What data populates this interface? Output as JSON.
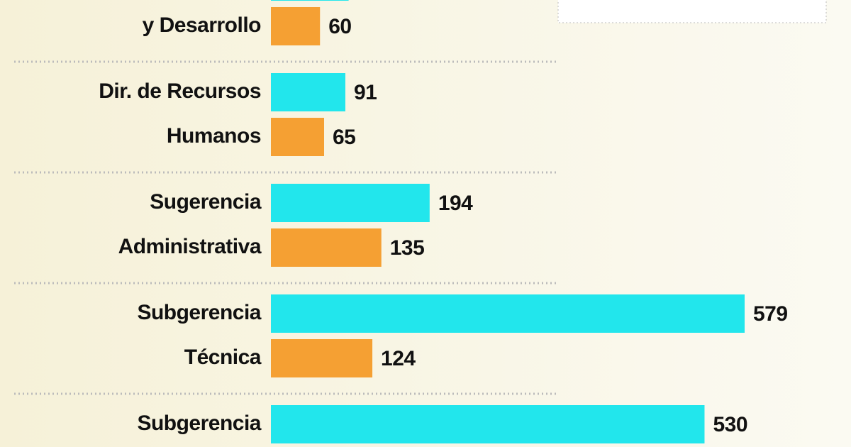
{
  "chart_data": {
    "type": "bar",
    "orientation": "horizontal",
    "categories": [
      [
        "y Desarrollo"
      ],
      [
        "Dir. de Recursos",
        "Humanos"
      ],
      [
        "Sugerencia",
        "Administrativa"
      ],
      [
        "Subgerencia",
        "Técnica"
      ],
      [
        "Subgerencia"
      ]
    ],
    "series": [
      {
        "color": "#22e6ec",
        "values": [
          95,
          91,
          194,
          579,
          530
        ]
      },
      {
        "color": "#f5a033",
        "values": [
          60,
          65,
          135,
          124,
          null
        ]
      }
    ]
  }
}
